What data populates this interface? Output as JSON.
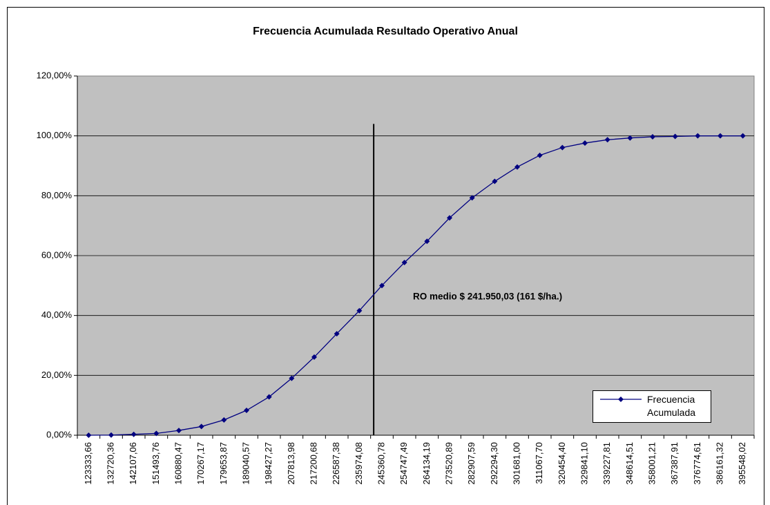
{
  "chart_data": {
    "type": "line",
    "title": "Frecuencia Acumulada Resultado Operativo Anual",
    "categories": [
      "123333,66",
      "132720,36",
      "142107,06",
      "151493,76",
      "160880,47",
      "170267,17",
      "179653,87",
      "189040,57",
      "198427,27",
      "207813,98",
      "217200,68",
      "226587,38",
      "235974,08",
      "245360,78",
      "254747,49",
      "264134,19",
      "273520,89",
      "282907,59",
      "292294,30",
      "301681,00",
      "311067,70",
      "320454,40",
      "329841,10",
      "339227,81",
      "348614,51",
      "358001,21",
      "367387,91",
      "376774,61",
      "386161,32",
      "395548,02"
    ],
    "series": [
      {
        "name": "Frecuencia Acumulada",
        "color": "#000080",
        "values": [
          0.0,
          0.05,
          0.3,
          0.6,
          1.6,
          2.9,
          5.1,
          8.3,
          12.8,
          19.0,
          26.1,
          33.9,
          41.6,
          50.0,
          57.7,
          64.8,
          72.6,
          79.3,
          84.8,
          89.6,
          93.5,
          96.1,
          97.6,
          98.7,
          99.3,
          99.7,
          99.8,
          100,
          100,
          100
        ]
      }
    ],
    "ylim": [
      0,
      120
    ],
    "yticks": [
      {
        "value": 0,
        "label": "0,00%"
      },
      {
        "value": 20,
        "label": "20,00%"
      },
      {
        "value": 40,
        "label": "40,00%"
      },
      {
        "value": 60,
        "label": "60,00%"
      },
      {
        "value": 80,
        "label": "80,00%"
      },
      {
        "value": 100,
        "label": "100,00%"
      },
      {
        "value": 120,
        "label": "120,00%"
      }
    ],
    "grid": true,
    "reference_line": {
      "x": 241950.03,
      "y_top": 104,
      "color": "#000000"
    },
    "annotation": "RO medio $ 241.950,03 (161 $/ha.)"
  }
}
